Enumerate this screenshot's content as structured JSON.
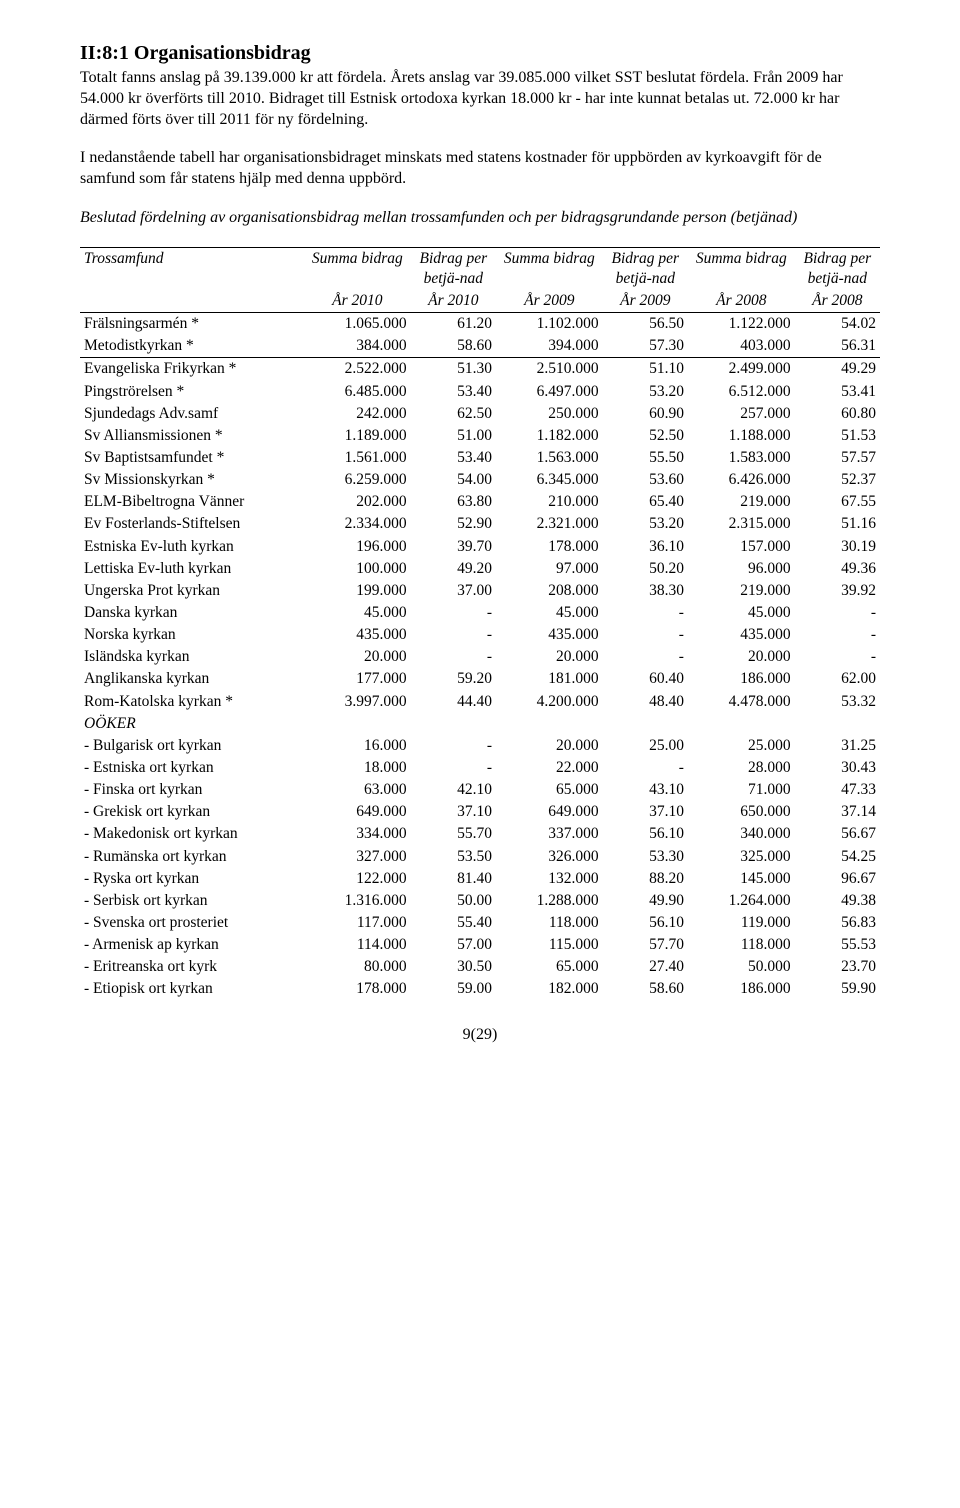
{
  "heading": "II:8:1 Organisationsbidrag",
  "para1": "Totalt fanns anslag på 39.139.000 kr att fördela. Årets anslag var 39.085.000 vilket SST beslutat fördela. Från 2009 har 54.000 kr överförts till 2010. Bidraget till Estnisk ortodoxa kyrkan 18.000 kr - har inte kunnat betalas ut. 72.000 kr har därmed förts över till 2011 för ny fördelning.",
  "para2": "I nedanstående tabell har organisationsbidraget minskats med statens kostnader för uppbörden av kyrkoavgift för de samfund som får statens hjälp med denna uppbörd.",
  "para3": "Beslutad fördelning av organisationsbidrag mellan trossamfunden och per bidragsgrundande person (betjänad)",
  "table": {
    "header": {
      "c1": "Trossamfund",
      "c2": "Summa bidrag",
      "c3": "Bidrag per betjä-nad",
      "c4": "Summa bidrag",
      "c5": "Bidrag per betjä-nad",
      "c6": "Summa bidrag",
      "c7": "Bidrag per betjä-nad"
    },
    "years": {
      "y2a": "År 2010",
      "y2b": "År 2010",
      "y3a": "År 2009",
      "y3b": "År 2009",
      "y4a": "År 2008",
      "y4b": "År 2008"
    },
    "rows": [
      {
        "name": "Frälsningsarmén *",
        "v": [
          "1.065.000",
          "61.20",
          "1.102.000",
          "56.50",
          "1.122.000",
          "54.02"
        ]
      },
      {
        "name": "Metodistkyrkan *",
        "v": [
          "384.000",
          "58.60",
          "394.000",
          "57.30",
          "403.000",
          "56.31"
        ],
        "bb": true
      },
      {
        "name": "Evangeliska Frikyrkan *",
        "v": [
          "2.522.000",
          "51.30",
          "2.510.000",
          "51.10",
          "2.499.000",
          "49.29"
        ]
      },
      {
        "name": "Pingströrelsen *",
        "v": [
          "6.485.000",
          "53.40",
          "6.497.000",
          "53.20",
          "6.512.000",
          "53.41"
        ]
      },
      {
        "name": "Sjundedags Adv.samf",
        "v": [
          "242.000",
          "62.50",
          "250.000",
          "60.90",
          "257.000",
          "60.80"
        ]
      },
      {
        "name": "Sv Alliansmissionen *",
        "v": [
          "1.189.000",
          "51.00",
          "1.182.000",
          "52.50",
          "1.188.000",
          "51.53"
        ]
      },
      {
        "name": "Sv Baptistsamfundet *",
        "v": [
          "1.561.000",
          "53.40",
          "1.563.000",
          "55.50",
          "1.583.000",
          "57.57"
        ]
      },
      {
        "name": "Sv Missionskyrkan *",
        "v": [
          "6.259.000",
          "54.00",
          "6.345.000",
          "53.60",
          "6.426.000",
          "52.37"
        ]
      },
      {
        "name": "ELM-Bibeltrogna Vänner",
        "v": [
          "202.000",
          "63.80",
          "210.000",
          "65.40",
          "219.000",
          "67.55"
        ]
      },
      {
        "name": "Ev Fosterlands-Stiftelsen",
        "v": [
          "2.334.000",
          "52.90",
          "2.321.000",
          "53.20",
          "2.315.000",
          "51.16"
        ]
      },
      {
        "name": "Estniska Ev-luth kyrkan",
        "v": [
          "196.000",
          "39.70",
          "178.000",
          "36.10",
          "157.000",
          "30.19"
        ]
      },
      {
        "name": "Lettiska Ev-luth kyrkan",
        "v": [
          "100.000",
          "49.20",
          "97.000",
          "50.20",
          "96.000",
          "49.36"
        ]
      },
      {
        "name": "Ungerska Prot kyrkan",
        "v": [
          "199.000",
          "37.00",
          "208.000",
          "38.30",
          "219.000",
          "39.92"
        ]
      },
      {
        "name": "Danska kyrkan",
        "v": [
          "45.000",
          "-",
          "45.000",
          "-",
          "45.000",
          "-"
        ]
      },
      {
        "name": "Norska kyrkan",
        "v": [
          "435.000",
          "-",
          "435.000",
          "-",
          "435.000",
          "-"
        ]
      },
      {
        "name": "Isländska kyrkan",
        "v": [
          "20.000",
          "-",
          "20.000",
          "-",
          "20.000",
          "-"
        ]
      },
      {
        "name": "Anglikanska kyrkan",
        "v": [
          "177.000",
          "59.20",
          "181.000",
          "60.40",
          "186.000",
          "62.00"
        ]
      },
      {
        "name": "Rom-Katolska kyrkan *",
        "v": [
          "3.997.000",
          "44.40",
          "4.200.000",
          "48.40",
          "4.478.000",
          "53.32"
        ]
      },
      {
        "name": "OÖKER",
        "v": [
          "",
          "",
          "",
          "",
          "",
          ""
        ],
        "italic": true
      },
      {
        "name": "- Bulgarisk ort kyrkan",
        "v": [
          "16.000",
          "-",
          "20.000",
          "25.00",
          "25.000",
          "31.25"
        ]
      },
      {
        "name": "- Estniska ort kyrkan",
        "v": [
          "18.000",
          "-",
          "22.000",
          "-",
          "28.000",
          "30.43"
        ]
      },
      {
        "name": "- Finska ort kyrkan",
        "v": [
          "63.000",
          "42.10",
          "65.000",
          "43.10",
          "71.000",
          "47.33"
        ]
      },
      {
        "name": "- Grekisk ort kyrkan",
        "v": [
          "649.000",
          "37.10",
          "649.000",
          "37.10",
          "650.000",
          "37.14"
        ]
      },
      {
        "name": "- Makedonisk ort kyrkan",
        "v": [
          "334.000",
          "55.70",
          "337.000",
          "56.10",
          "340.000",
          "56.67"
        ]
      },
      {
        "name": "- Rumänska ort kyrkan",
        "v": [
          "327.000",
          "53.50",
          "326.000",
          "53.30",
          "325.000",
          "54.25"
        ]
      },
      {
        "name": "- Ryska ort kyrkan",
        "v": [
          "122.000",
          "81.40",
          "132.000",
          "88.20",
          "145.000",
          "96.67"
        ]
      },
      {
        "name": "- Serbisk ort kyrkan",
        "v": [
          "1.316.000",
          "50.00",
          "1.288.000",
          "49.90",
          "1.264.000",
          "49.38"
        ]
      },
      {
        "name": "- Svenska ort prosteriet",
        "v": [
          "117.000",
          "55.40",
          "118.000",
          "56.10",
          "119.000",
          "56.83"
        ]
      },
      {
        "name": "- Armenisk ap kyrkan",
        "v": [
          "114.000",
          "57.00",
          "115.000",
          "57.70",
          "118.000",
          "55.53"
        ]
      },
      {
        "name": "- Eritreanska ort kyrk",
        "v": [
          "80.000",
          "30.50",
          "65.000",
          "27.40",
          "50.000",
          "23.70"
        ]
      },
      {
        "name": "- Etiopisk ort kyrkan",
        "v": [
          "178.000",
          "59.00",
          "182.000",
          "58.60",
          "186.000",
          "59.90"
        ]
      }
    ]
  },
  "footer": "9(29)"
}
